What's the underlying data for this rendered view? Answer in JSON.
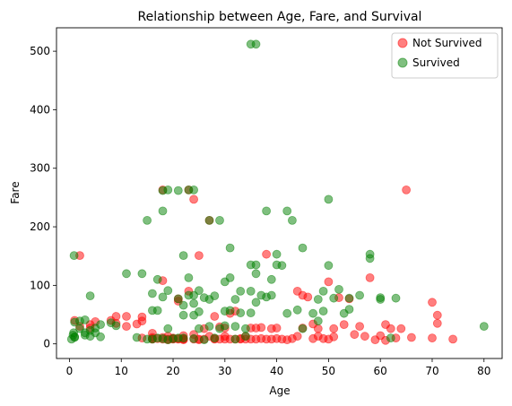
{
  "chart_data": {
    "type": "scatter",
    "title": "Relationship between Age, Fare, and Survival",
    "xlabel": "Age",
    "ylabel": "Fare",
    "xlim": [
      -2.5,
      83.5
    ],
    "ylim": [
      -25,
      540
    ],
    "xticks": [
      0,
      10,
      20,
      30,
      40,
      50,
      60,
      70,
      80
    ],
    "yticks": [
      0,
      100,
      200,
      300,
      400,
      500
    ],
    "grid": false,
    "legend_position": "top-right",
    "series": [
      {
        "name": "Not Survived",
        "color": "#ff0000",
        "points": [
          [
            2,
            151
          ],
          [
            1,
            40
          ],
          [
            2,
            30
          ],
          [
            4,
            27
          ],
          [
            4,
            33
          ],
          [
            5,
            38
          ],
          [
            8,
            40
          ],
          [
            9,
            47
          ],
          [
            9,
            35
          ],
          [
            11,
            47
          ],
          [
            11,
            30
          ],
          [
            13,
            34
          ],
          [
            14,
            39
          ],
          [
            14,
            46
          ],
          [
            14,
            10
          ],
          [
            16,
            8
          ],
          [
            16,
            11
          ],
          [
            16,
            9
          ],
          [
            16,
            18
          ],
          [
            17,
            9
          ],
          [
            18,
            8
          ],
          [
            18,
            11
          ],
          [
            18,
            108
          ],
          [
            18,
            263
          ],
          [
            19,
            8
          ],
          [
            19,
            13
          ],
          [
            19,
            7
          ],
          [
            20,
            9
          ],
          [
            20,
            8
          ],
          [
            20,
            10
          ],
          [
            21,
            77
          ],
          [
            21,
            8
          ],
          [
            21,
            9
          ],
          [
            21,
            73
          ],
          [
            22,
            8
          ],
          [
            22,
            9
          ],
          [
            22,
            7
          ],
          [
            22,
            14
          ],
          [
            23,
            263
          ],
          [
            23,
            90
          ],
          [
            24,
            8
          ],
          [
            24,
            247
          ],
          [
            24,
            16
          ],
          [
            25,
            8
          ],
          [
            25,
            7
          ],
          [
            25,
            151
          ],
          [
            26,
            8
          ],
          [
            26,
            26
          ],
          [
            27,
            211
          ],
          [
            27,
            13
          ],
          [
            28,
            8
          ],
          [
            28,
            9
          ],
          [
            28,
            47
          ],
          [
            29,
            8
          ],
          [
            29,
            29
          ],
          [
            30,
            8
          ],
          [
            30,
            13
          ],
          [
            30,
            27
          ],
          [
            31,
            8
          ],
          [
            31,
            52
          ],
          [
            32,
            8
          ],
          [
            32,
            56
          ],
          [
            33,
            8
          ],
          [
            33,
            9
          ],
          [
            34,
            8
          ],
          [
            34,
            13
          ],
          [
            35,
            8
          ],
          [
            35,
            27
          ],
          [
            36,
            8
          ],
          [
            36,
            27
          ],
          [
            37,
            28
          ],
          [
            37,
            9
          ],
          [
            38,
            8
          ],
          [
            38,
            153
          ],
          [
            39,
            8
          ],
          [
            39,
            26
          ],
          [
            40,
            27
          ],
          [
            40,
            9
          ],
          [
            41,
            8
          ],
          [
            42,
            7
          ],
          [
            43,
            9
          ],
          [
            44,
            13
          ],
          [
            44,
            90
          ],
          [
            45,
            27
          ],
          [
            45,
            83
          ],
          [
            46,
            80
          ],
          [
            47,
            9
          ],
          [
            47,
            34
          ],
          [
            48,
            26
          ],
          [
            48,
            13
          ],
          [
            49,
            9
          ],
          [
            50,
            106
          ],
          [
            50,
            8
          ],
          [
            51,
            12
          ],
          [
            51,
            26
          ],
          [
            52,
            79
          ],
          [
            53,
            33
          ],
          [
            54,
            77
          ],
          [
            55,
            16
          ],
          [
            56,
            30
          ],
          [
            57,
            13
          ],
          [
            58,
            113
          ],
          [
            59,
            7
          ],
          [
            60,
            14
          ],
          [
            61,
            6
          ],
          [
            61,
            33
          ],
          [
            62,
            26
          ],
          [
            63,
            10
          ],
          [
            64,
            26
          ],
          [
            65,
            263
          ],
          [
            66,
            11
          ],
          [
            70,
            10
          ],
          [
            70,
            71
          ],
          [
            71,
            49
          ],
          [
            71,
            35
          ],
          [
            74,
            8
          ]
        ]
      },
      {
        "name": "Survived",
        "color": "#008000",
        "points": [
          [
            0.4,
            8
          ],
          [
            0.7,
            15
          ],
          [
            0.8,
            19
          ],
          [
            0.9,
            151
          ],
          [
            1,
            12
          ],
          [
            1,
            37
          ],
          [
            1,
            11
          ],
          [
            2,
            39
          ],
          [
            2,
            26
          ],
          [
            3,
            15
          ],
          [
            3,
            41
          ],
          [
            3,
            19
          ],
          [
            4,
            13
          ],
          [
            4,
            82
          ],
          [
            4,
            23
          ],
          [
            5,
            19
          ],
          [
            5,
            27
          ],
          [
            6,
            12
          ],
          [
            6,
            33
          ],
          [
            8,
            36
          ],
          [
            9,
            31
          ],
          [
            11,
            120
          ],
          [
            13,
            11
          ],
          [
            14,
            120
          ],
          [
            15,
            211
          ],
          [
            15,
            8
          ],
          [
            16,
            57
          ],
          [
            16,
            86
          ],
          [
            16,
            8
          ],
          [
            17,
            110
          ],
          [
            17,
            57
          ],
          [
            17,
            10
          ],
          [
            18,
            227
          ],
          [
            18,
            262
          ],
          [
            18,
            80
          ],
          [
            18,
            9
          ],
          [
            19,
            263
          ],
          [
            19,
            91
          ],
          [
            19,
            26
          ],
          [
            19,
            7
          ],
          [
            20,
            9
          ],
          [
            21,
            262
          ],
          [
            21,
            77
          ],
          [
            21,
            10
          ],
          [
            22,
            151
          ],
          [
            22,
            66
          ],
          [
            22,
            49
          ],
          [
            22,
            10
          ],
          [
            23,
            263
          ],
          [
            23,
            113
          ],
          [
            23,
            83
          ],
          [
            24,
            263
          ],
          [
            24,
            69
          ],
          [
            24,
            49
          ],
          [
            24,
            83
          ],
          [
            24,
            9
          ],
          [
            25,
            91
          ],
          [
            25,
            55
          ],
          [
            25,
            26
          ],
          [
            26,
            79
          ],
          [
            26,
            7
          ],
          [
            27,
            211
          ],
          [
            27,
            30
          ],
          [
            27,
            76
          ],
          [
            28,
            82
          ],
          [
            28,
            10
          ],
          [
            29,
            211
          ],
          [
            29,
            26
          ],
          [
            30,
            106
          ],
          [
            30,
            56
          ],
          [
            30,
            31
          ],
          [
            31,
            164
          ],
          [
            31,
            113
          ],
          [
            31,
            57
          ],
          [
            32,
            8
          ],
          [
            32,
            76
          ],
          [
            32,
            30
          ],
          [
            33,
            53
          ],
          [
            33,
            90
          ],
          [
            34,
            26
          ],
          [
            34,
            13
          ],
          [
            35,
            512
          ],
          [
            35,
            135
          ],
          [
            35,
            90
          ],
          [
            35,
            53
          ],
          [
            36,
            512
          ],
          [
            36,
            120
          ],
          [
            36,
            135
          ],
          [
            36,
            71
          ],
          [
            37,
            83
          ],
          [
            38,
            227
          ],
          [
            38,
            80
          ],
          [
            39,
            110
          ],
          [
            39,
            83
          ],
          [
            40,
            153
          ],
          [
            40,
            135
          ],
          [
            41,
            134
          ],
          [
            42,
            227
          ],
          [
            42,
            52
          ],
          [
            43,
            211
          ],
          [
            44,
            58
          ],
          [
            45,
            164
          ],
          [
            45,
            26
          ],
          [
            47,
            52
          ],
          [
            48,
            76
          ],
          [
            48,
            39
          ],
          [
            49,
            90
          ],
          [
            49,
            56
          ],
          [
            50,
            247
          ],
          [
            50,
            134
          ],
          [
            51,
            78
          ],
          [
            52,
            93
          ],
          [
            53,
            52
          ],
          [
            54,
            59
          ],
          [
            54,
            78
          ],
          [
            56,
            83
          ],
          [
            58,
            153
          ],
          [
            58,
            146
          ],
          [
            60,
            79
          ],
          [
            60,
            76
          ],
          [
            62,
            10
          ],
          [
            63,
            78
          ],
          [
            80,
            30
          ]
        ]
      }
    ]
  }
}
